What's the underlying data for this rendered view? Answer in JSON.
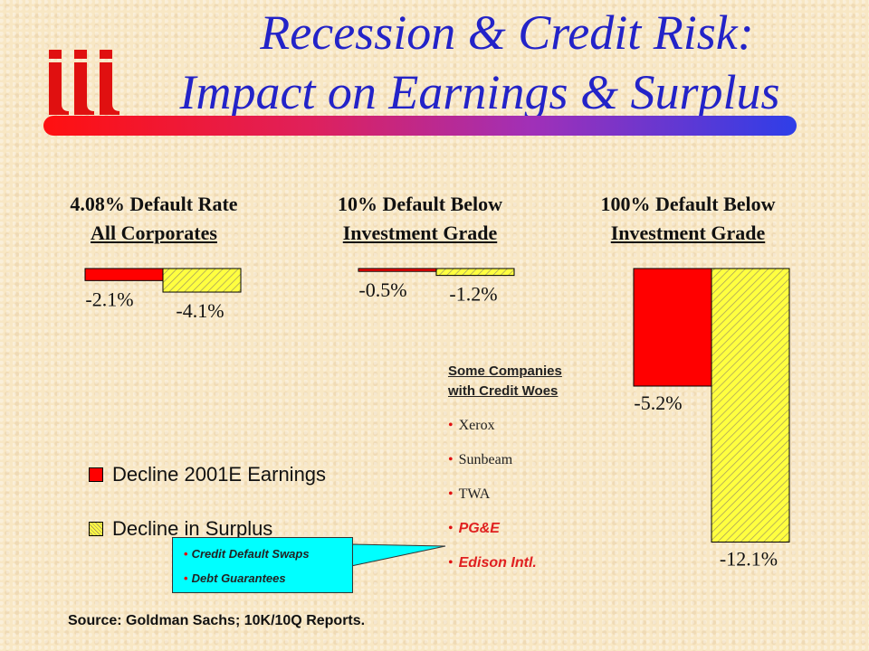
{
  "title": {
    "line1": "Recession & Credit Risk:",
    "line2": "Impact on Earnings & Surplus"
  },
  "logo": {
    "text": "iii",
    "color": "#e01010"
  },
  "colors": {
    "earnings": "#ff0000",
    "surplus": "#ffff40",
    "title": "#2323c8",
    "callout_bg": "#00ffff"
  },
  "chart_data": [
    {
      "type": "bar",
      "title_line1": "4.08% Default Rate",
      "title_line2": "All Corporates",
      "series": [
        {
          "name": "Decline 2001E Earnings",
          "values": [
            -2.1
          ],
          "labels": [
            "-2.1%"
          ]
        },
        {
          "name": "Decline in Surplus",
          "values": [
            -4.1
          ],
          "labels": [
            "-4.1%"
          ]
        }
      ],
      "ylim": [
        -4.1,
        0
      ]
    },
    {
      "type": "bar",
      "title_line1": "10% Default Below",
      "title_line2": "Investment Grade",
      "series": [
        {
          "name": "Decline 2001E Earnings",
          "values": [
            -0.5
          ],
          "labels": [
            "-0.5%"
          ]
        },
        {
          "name": "Decline in Surplus",
          "values": [
            -1.2
          ],
          "labels": [
            "-1.2%"
          ]
        }
      ],
      "ylim": [
        -1.2,
        0
      ]
    },
    {
      "type": "bar",
      "title_line1": "100% Default Below",
      "title_line2": "Investment Grade",
      "series": [
        {
          "name": "Decline 2001E Earnings",
          "values": [
            -5.2
          ],
          "labels": [
            "-5.2%"
          ]
        },
        {
          "name": "Decline in Surplus",
          "values": [
            -12.1
          ],
          "labels": [
            "-12.1%"
          ]
        }
      ],
      "ylim": [
        -12.1,
        0
      ]
    }
  ],
  "legend": {
    "earnings": "Decline 2001E Earnings",
    "surplus": "Decline in Surplus"
  },
  "companies": {
    "title_line1": "Some Companies",
    "title_line2": "with Credit Woes",
    "items": [
      "Xerox",
      "Sunbeam",
      "TWA",
      "PG&E",
      "Edison Intl."
    ]
  },
  "callout": {
    "items": [
      "Credit Default Swaps",
      "Debt Guarantees"
    ]
  },
  "source": "Source: Goldman Sachs; 10K/10Q Reports."
}
